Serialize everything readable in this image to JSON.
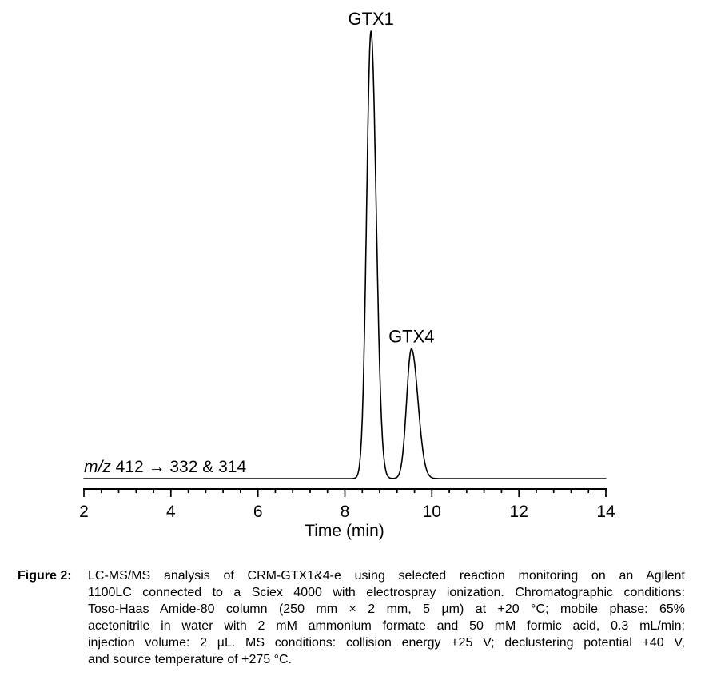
{
  "caption": {
    "label": "Figure 2:",
    "lines": [
      "LC-MS/MS analysis of CRM-GTX1&4-e using selected reaction monitoring on an Agilent",
      "1100LC connected to a Sciex 4000 with electrospray ionization. Chromatographic conditions:",
      "Toso-Haas Amide-80 column (250 mm × 2 mm, 5 µm) at +20 °C; mobile phase: 65%",
      "acetonitrile in water with 2 mM ammonium formate and 50 mM formic acid, 0.3 mL/min;",
      "injection volume: 2 µL. MS conditions: collision energy +25 V; declustering potential +40 V,",
      "and source temperature of +275 °C."
    ]
  },
  "chart_data": {
    "type": "line",
    "title": "",
    "xlabel": "Time (min)",
    "ylabel": "",
    "x_range": [
      2,
      14
    ],
    "x_major_ticks": [
      2,
      4,
      6,
      8,
      10,
      12,
      14
    ],
    "x_minor_tick_step": 0.4,
    "grid": false,
    "legend": "none",
    "line_color": "#000000",
    "background_color": "#ffffff",
    "annotation": {
      "italic": "m/z",
      "rest": " 412 → 332 & 314",
      "full": "m/z 412 → 332 & 314"
    },
    "baseline_intensity": 0,
    "peaks": [
      {
        "label": "GTX1",
        "retention_time_min": 8.6,
        "relative_intensity": 1.0,
        "sigma_left_min": 0.1,
        "sigma_right_min": 0.12
      },
      {
        "label": "GTX4",
        "retention_time_min": 9.53,
        "relative_intensity": 0.29,
        "sigma_left_min": 0.11,
        "sigma_right_min": 0.15
      }
    ]
  }
}
